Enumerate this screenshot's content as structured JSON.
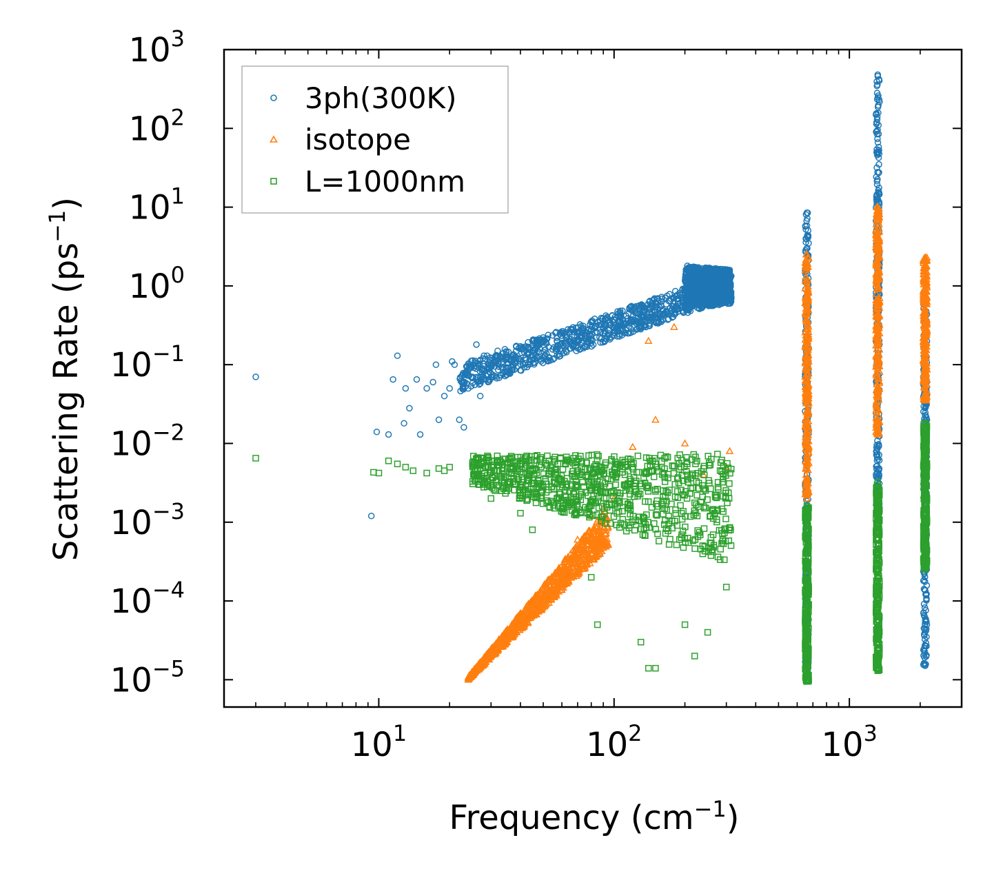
{
  "chart_data": {
    "type": "scatter",
    "xscale": "log",
    "yscale": "log",
    "xlabel": "Frequency (cm",
    "xlabel_sup": "−1",
    "xlabel_end": ")",
    "ylabel": "Scattering Rate (ps",
    "ylabel_sup": "−1",
    "ylabel_end": ")",
    "xlim": [
      2.2,
      3000
    ],
    "ylim": [
      4.5e-06,
      1000
    ],
    "xticks": [
      {
        "value": 10,
        "base": "10",
        "exp": "1"
      },
      {
        "value": 100,
        "base": "10",
        "exp": "2"
      },
      {
        "value": 1000,
        "base": "10",
        "exp": "3"
      }
    ],
    "yticks": [
      {
        "value": 1e-05,
        "base": "10",
        "exp": "−5"
      },
      {
        "value": 0.0001,
        "base": "10",
        "exp": "−4"
      },
      {
        "value": 0.001,
        "base": "10",
        "exp": "−3"
      },
      {
        "value": 0.01,
        "base": "10",
        "exp": "−2"
      },
      {
        "value": 0.1,
        "base": "10",
        "exp": "−1"
      },
      {
        "value": 1,
        "base": "10",
        "exp": "0"
      },
      {
        "value": 10,
        "base": "10",
        "exp": "1"
      },
      {
        "value": 100,
        "base": "10",
        "exp": "2"
      },
      {
        "value": 1000,
        "base": "10",
        "exp": "3"
      }
    ],
    "legend_position": "top-left",
    "series": [
      {
        "name": "3ph(300K)",
        "marker": "circle",
        "color": "#1f77b4",
        "points": [
          [
            3.0,
            0.07
          ],
          [
            9.3,
            0.0012
          ],
          [
            9.8,
            0.014
          ],
          [
            11,
            0.013
          ],
          [
            11.5,
            0.065
          ],
          [
            12,
            0.13
          ],
          [
            12.8,
            0.018
          ],
          [
            13,
            0.05
          ],
          [
            13.5,
            0.028
          ],
          [
            14.5,
            0.065
          ],
          [
            15,
            0.013
          ],
          [
            16,
            0.05
          ],
          [
            17,
            0.06
          ],
          [
            17.5,
            0.1
          ],
          [
            18,
            0.02
          ],
          [
            19,
            0.04
          ],
          [
            20,
            0.05
          ],
          [
            20.5,
            0.11
          ],
          [
            21,
            0.1
          ],
          [
            22,
            0.02
          ],
          [
            23,
            0.016
          ],
          [
            24,
            0.05
          ],
          [
            25,
            0.07
          ],
          [
            26,
            0.18
          ],
          [
            27,
            0.04
          ],
          [
            28,
            0.13
          ],
          [
            30,
            0.1
          ],
          [
            32,
            0.15
          ],
          [
            35,
            0.12
          ],
          [
            40,
            0.16
          ],
          [
            45,
            0.2
          ],
          [
            50,
            0.2
          ],
          [
            60,
            0.25
          ],
          [
            70,
            0.25
          ],
          [
            80,
            0.28
          ],
          [
            90,
            0.3
          ],
          [
            100,
            0.32
          ],
          [
            120,
            0.35
          ],
          [
            150,
            0.4
          ],
          [
            180,
            0.5
          ],
          [
            200,
            0.8
          ],
          [
            205,
            1.8
          ],
          [
            220,
            1.2
          ],
          [
            250,
            0.9
          ],
          [
            280,
            1.2
          ],
          [
            300,
            1.4
          ],
          [
            310,
            1.5
          ]
        ],
        "bands": [
          {
            "x0": 22,
            "x1": 315,
            "ylo0": 0.045,
            "yhi0": 0.1,
            "ylo1": 0.7,
            "yhi1": 1.5
          },
          {
            "x0": 200,
            "x1": 315,
            "ylo0": 0.5,
            "yhi0": 1.8,
            "ylo1": 0.6,
            "yhi1": 1.6
          }
        ],
        "columns": [
          {
            "x": 660,
            "ylo": 1e-05,
            "yhi": 8.5
          },
          {
            "x": 1320,
            "ylo": 0.0016,
            "yhi": 480
          },
          {
            "x": 2100,
            "ylo": 1.5e-05,
            "yhi": 0.7
          }
        ]
      },
      {
        "name": "isotope",
        "marker": "triangle",
        "color": "#ff7f0e",
        "points": [
          [
            24,
            1e-05
          ],
          [
            25,
            1.2e-05
          ],
          [
            27,
            1.5e-05
          ],
          [
            30,
            2e-05
          ],
          [
            35,
            4e-05
          ],
          [
            40,
            7e-05
          ],
          [
            50,
            0.00012
          ],
          [
            60,
            0.00025
          ],
          [
            70,
            0.0006
          ],
          [
            80,
            0.0012
          ],
          [
            90,
            0.0015
          ],
          [
            100,
            0.002
          ],
          [
            120,
            0.009
          ],
          [
            140,
            0.2
          ],
          [
            150,
            0.02
          ],
          [
            180,
            0.3
          ],
          [
            200,
            0.01
          ],
          [
            240,
            0.004
          ],
          [
            300,
            0.005
          ],
          [
            310,
            0.008
          ]
        ],
        "bands": [
          {
            "x0": 24,
            "x1": 95,
            "ylo0": 1e-05,
            "yhi0": 1.1e-05,
            "ylo1": 0.0005,
            "yhi1": 0.0016
          }
        ],
        "columns": [
          {
            "x": 660,
            "ylo": 0.002,
            "yhi": 2.5
          },
          {
            "x": 1320,
            "ylo": 0.013,
            "yhi": 10
          },
          {
            "x": 2100,
            "ylo": 0.035,
            "yhi": 2.3
          }
        ]
      },
      {
        "name": "L=1000nm",
        "marker": "square",
        "color": "#2ca02c",
        "points": [
          [
            3.0,
            0.0065
          ],
          [
            9.5,
            0.0043
          ],
          [
            10,
            0.0042
          ],
          [
            11,
            0.006
          ],
          [
            12,
            0.0055
          ],
          [
            13,
            0.005
          ],
          [
            14,
            0.0045
          ],
          [
            16,
            0.0042
          ],
          [
            18,
            0.0048
          ],
          [
            19,
            0.0045
          ],
          [
            20,
            0.005
          ],
          [
            25,
            0.0055
          ],
          [
            30,
            0.002
          ],
          [
            35,
            0.0025
          ],
          [
            40,
            0.0013
          ],
          [
            45,
            0.0008
          ],
          [
            60,
            0.0015
          ],
          [
            80,
            0.0002
          ],
          [
            85,
            5e-05
          ],
          [
            130,
            3e-05
          ],
          [
            140,
            1.4e-05
          ],
          [
            150,
            1.4e-05
          ],
          [
            200,
            5e-05
          ],
          [
            220,
            2e-05
          ],
          [
            250,
            4e-05
          ],
          [
            300,
            0.00015
          ]
        ],
        "bands": [
          {
            "x0": 25,
            "x1": 315,
            "ylo0": 0.003,
            "yhi0": 0.007,
            "ylo1": 0.0003,
            "yhi1": 0.0075
          }
        ],
        "columns": [
          {
            "x": 660,
            "ylo": 9.5e-06,
            "yhi": 0.0016
          },
          {
            "x": 1320,
            "ylo": 1.3e-05,
            "yhi": 0.0032
          },
          {
            "x": 2100,
            "ylo": 0.00025,
            "yhi": 0.018
          }
        ]
      }
    ]
  }
}
